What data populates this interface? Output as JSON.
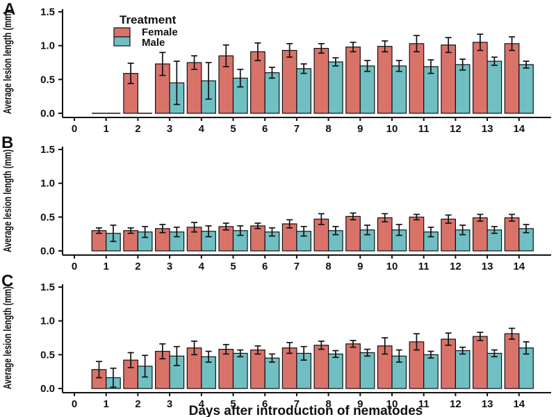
{
  "figure": {
    "y_axis_title": "Average lesion length (mm)",
    "x_axis_title": "Days after introduction of nematodes",
    "panel_labels": [
      "A",
      "B",
      "C"
    ],
    "legend": {
      "title": "Treatment",
      "entries": [
        {
          "label": "Female",
          "color": "#d9736a"
        },
        {
          "label": "Male",
          "color": "#6fbfc3"
        }
      ]
    },
    "y_tick_labels": [
      "0.0",
      "0.5",
      "1.0",
      "1.5"
    ],
    "x_tick_labels": [
      "0",
      "1",
      "2",
      "3",
      "4",
      "5",
      "6",
      "7",
      "8",
      "9",
      "10",
      "11",
      "12",
      "13",
      "14"
    ],
    "colors": {
      "female_fill": "#d9736a",
      "male_fill": "#6fbfc3",
      "bar_outline": "#111111",
      "axis": "#111111",
      "error_bar": "#111111"
    }
  },
  "chart_data": [
    {
      "type": "bar",
      "panel": "A",
      "title": "",
      "xlabel": "Days after introduction of nematodes",
      "ylabel": "Average lesion length (mm)",
      "ylim": [
        0,
        1.5
      ],
      "y_ticks": [
        0,
        0.5,
        1.0,
        1.5
      ],
      "x_ticks": [
        0,
        1,
        2,
        3,
        4,
        5,
        6,
        7,
        8,
        9,
        10,
        11,
        12,
        13,
        14
      ],
      "x": [
        1,
        2,
        3,
        4,
        5,
        6,
        7,
        8,
        9,
        10,
        11,
        12,
        13,
        14
      ],
      "legend_position": "top-left-inside",
      "grid": false,
      "series": [
        {
          "name": "Female",
          "values": [
            0,
            0.59,
            0.73,
            0.75,
            0.85,
            0.91,
            0.93,
            0.96,
            0.98,
            0.99,
            1.03,
            1.01,
            1.05,
            1.03
          ],
          "errors": [
            0,
            0.15,
            0.17,
            0.1,
            0.16,
            0.13,
            0.1,
            0.07,
            0.07,
            0.08,
            0.12,
            0.11,
            0.12,
            0.1
          ]
        },
        {
          "name": "Male",
          "values": [
            0,
            0,
            0.45,
            0.48,
            0.52,
            0.6,
            0.66,
            0.76,
            0.7,
            0.7,
            0.69,
            0.72,
            0.77,
            0.72
          ],
          "errors": [
            0,
            0,
            0.32,
            0.27,
            0.13,
            0.08,
            0.07,
            0.06,
            0.08,
            0.08,
            0.1,
            0.08,
            0.06,
            0.05
          ]
        }
      ]
    },
    {
      "type": "bar",
      "panel": "B",
      "title": "",
      "xlabel": "Days after introduction of nematodes",
      "ylabel": "Average lesion length (mm)",
      "ylim": [
        0,
        1.5
      ],
      "y_ticks": [
        0,
        0.5,
        1.0,
        1.5
      ],
      "x_ticks": [
        0,
        1,
        2,
        3,
        4,
        5,
        6,
        7,
        8,
        9,
        10,
        11,
        12,
        13,
        14
      ],
      "x": [
        1,
        2,
        3,
        4,
        5,
        6,
        7,
        8,
        9,
        10,
        11,
        12,
        13,
        14
      ],
      "legend_position": "none",
      "grid": false,
      "series": [
        {
          "name": "Female",
          "values": [
            0.3,
            0.3,
            0.33,
            0.35,
            0.36,
            0.37,
            0.4,
            0.47,
            0.51,
            0.49,
            0.5,
            0.47,
            0.49,
            0.49
          ],
          "errors": [
            0.04,
            0.04,
            0.06,
            0.07,
            0.05,
            0.04,
            0.06,
            0.08,
            0.05,
            0.06,
            0.04,
            0.06,
            0.05,
            0.05
          ]
        },
        {
          "name": "Male",
          "values": [
            0.26,
            0.28,
            0.28,
            0.29,
            0.3,
            0.28,
            0.29,
            0.3,
            0.31,
            0.31,
            0.28,
            0.31,
            0.31,
            0.33
          ],
          "errors": [
            0.12,
            0.08,
            0.07,
            0.08,
            0.07,
            0.06,
            0.07,
            0.06,
            0.07,
            0.08,
            0.07,
            0.07,
            0.05,
            0.06
          ]
        }
      ]
    },
    {
      "type": "bar",
      "panel": "C",
      "title": "",
      "xlabel": "Days after introduction of nematodes",
      "ylabel": "Average lesion length (mm)",
      "ylim": [
        0,
        1.5
      ],
      "y_ticks": [
        0,
        0.5,
        1.0,
        1.5
      ],
      "x_ticks": [
        0,
        1,
        2,
        3,
        4,
        5,
        6,
        7,
        8,
        9,
        10,
        11,
        12,
        13,
        14
      ],
      "x": [
        1,
        2,
        3,
        4,
        5,
        6,
        7,
        8,
        9,
        10,
        11,
        12,
        13,
        14
      ],
      "legend_position": "none",
      "grid": false,
      "series": [
        {
          "name": "Female",
          "values": [
            0.28,
            0.42,
            0.55,
            0.6,
            0.58,
            0.57,
            0.6,
            0.64,
            0.66,
            0.63,
            0.69,
            0.73,
            0.77,
            0.81
          ],
          "errors": [
            0.12,
            0.11,
            0.11,
            0.1,
            0.07,
            0.06,
            0.08,
            0.06,
            0.05,
            0.12,
            0.12,
            0.09,
            0.06,
            0.08
          ]
        },
        {
          "name": "Male",
          "values": [
            0.16,
            0.33,
            0.48,
            0.47,
            0.52,
            0.45,
            0.52,
            0.51,
            0.53,
            0.48,
            0.5,
            0.56,
            0.52,
            0.6
          ],
          "errors": [
            0.14,
            0.16,
            0.14,
            0.08,
            0.05,
            0.06,
            0.1,
            0.05,
            0.05,
            0.09,
            0.05,
            0.05,
            0.05,
            0.09
          ]
        }
      ]
    }
  ]
}
